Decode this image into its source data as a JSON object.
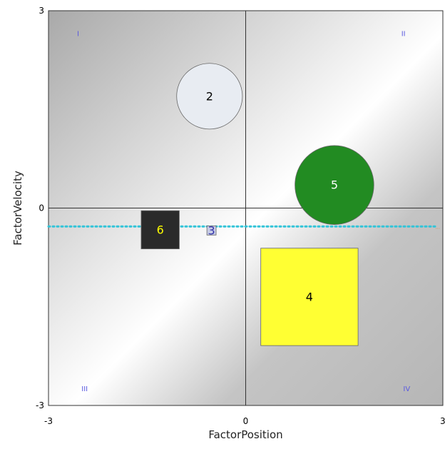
{
  "chart_data": {
    "type": "scatter",
    "xlabel": "FactorPosition",
    "ylabel": "FactorVelocity",
    "xlim": [
      -3,
      3
    ],
    "ylim": [
      -3,
      3
    ],
    "x_ticks": [
      "-3",
      "0",
      "3"
    ],
    "y_ticks": [
      "3",
      "0",
      "-3"
    ],
    "quadrant_labels": [
      "I",
      "II",
      "III",
      "IV"
    ],
    "reference_line": {
      "y": -0.28,
      "color": "#33c4d8",
      "label": "..."
    },
    "points": [
      {
        "label": "2",
        "x": -0.55,
        "y": 1.7,
        "shape": "circle",
        "size": 1.0,
        "color": "#e8ecf2",
        "text_color": "#000000"
      },
      {
        "label": "5",
        "x": 1.35,
        "y": 0.35,
        "shape": "circle",
        "size": 1.2,
        "color": "#228b22",
        "text_color": "#ffffff"
      },
      {
        "label": "6",
        "x": -1.3,
        "y": -0.33,
        "shape": "square",
        "size": 0.58,
        "color": "#2a2a2a",
        "text_color": "#ffff00"
      },
      {
        "label": "3",
        "x": -0.52,
        "y": -0.34,
        "shape": "square",
        "size": 0.14,
        "color": "#c7cce6",
        "text_color": "#3333aa"
      },
      {
        "label": "4",
        "x": 0.97,
        "y": -1.35,
        "shape": "square",
        "size": 1.48,
        "color": "#ffff33",
        "text_color": "#000000"
      }
    ]
  }
}
